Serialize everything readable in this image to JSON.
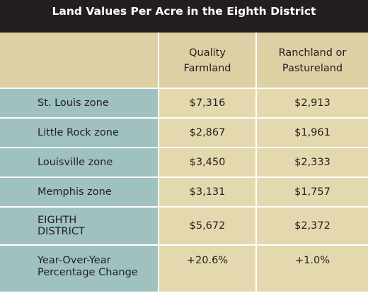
{
  "title": "Land Values Per Acre in the Eighth District",
  "headers": {
    "label": "",
    "farmland": [
      "Quality",
      "Farmland"
    ],
    "ranchland": [
      "Ranchland or",
      "Pastureland"
    ]
  },
  "rows": [
    {
      "label": [
        "St. Louis zone"
      ],
      "farmland": "$7,316",
      "ranchland": "$2,913"
    },
    {
      "label": [
        "Little Rock zone"
      ],
      "farmland": "$2,867",
      "ranchland": "$1,961"
    },
    {
      "label": [
        "Louisville zone"
      ],
      "farmland": "$3,450",
      "ranchland": "$2,333"
    },
    {
      "label": [
        "Memphis zone"
      ],
      "farmland": "$3,131",
      "ranchland": "$1,757"
    },
    {
      "label": [
        "EIGHTH",
        "DISTRICT"
      ],
      "farmland": "$5,672",
      "ranchland": "$2,372"
    },
    {
      "label": [
        "Year-Over-Year",
        "Percentage Change"
      ],
      "farmland": "+20.6%",
      "ranchland": "+1.0%"
    }
  ],
  "colors": {
    "title_bg": "#231f20",
    "header_bg": "#dcd0a4",
    "label_col_bg": "#9fc1c0",
    "value_bg": "#e4d9ae"
  }
}
